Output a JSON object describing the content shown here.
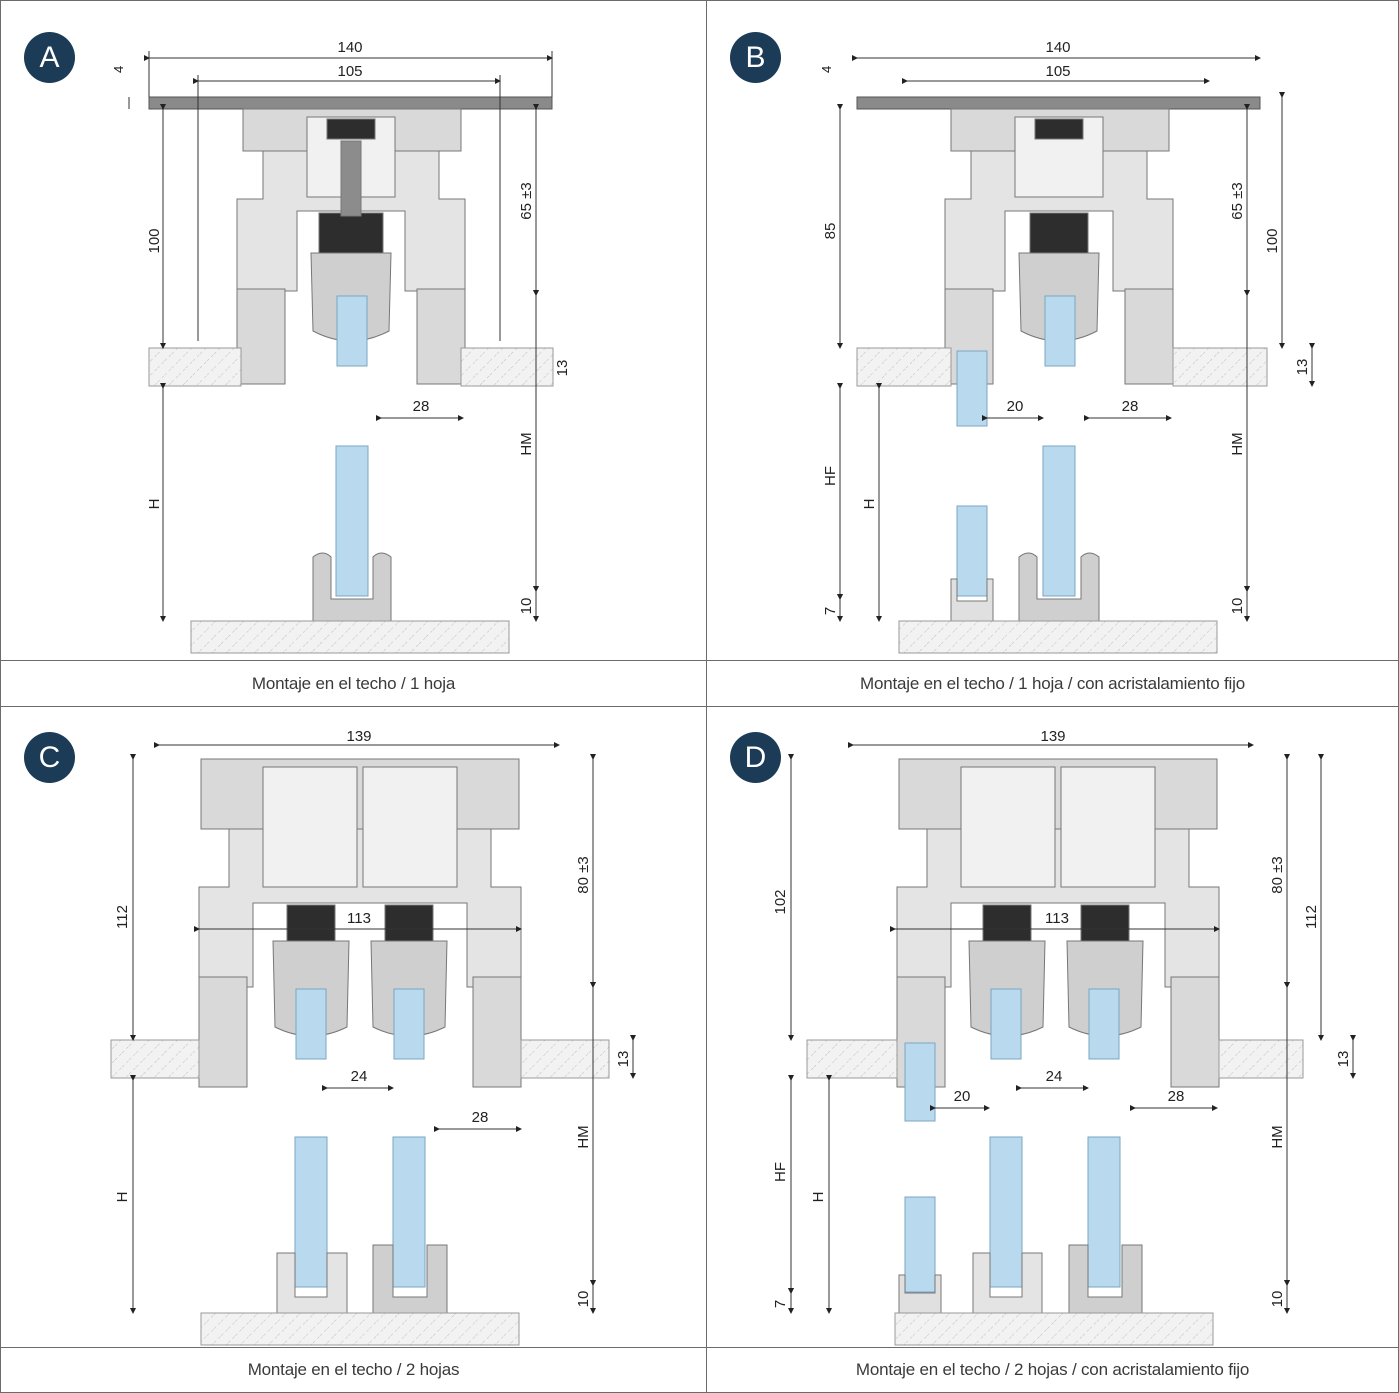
{
  "panels": [
    {
      "id": "A",
      "caption": "Montaje en el techo / 1 hoja",
      "dims": {
        "top_outer": "140",
        "top_inner": "105",
        "plate": "4",
        "left_height": "100",
        "right_upper": "65 ±3",
        "ceiling": "13",
        "gap_right": "28",
        "h": "H",
        "hm": "HM",
        "bottom": "10"
      }
    },
    {
      "id": "B",
      "caption": "Montaje en el techo / 1 hoja / con acristalamiento fijo",
      "dims": {
        "top_outer": "140",
        "top_inner": "105",
        "plate": "4",
        "left_height": "85",
        "right_upper": "65 ±3",
        "right_outer": "100",
        "ceiling": "13",
        "gap_left": "20",
        "gap_right": "28",
        "hf": "HF",
        "h": "H",
        "hm": "HM",
        "bottom_left": "7",
        "bottom": "10"
      }
    },
    {
      "id": "C",
      "caption": "Montaje en el techo / 2 hojas",
      "dims": {
        "top_outer": "139",
        "inner": "113",
        "left_height": "112",
        "right_upper": "80 ±3",
        "ceiling": "13",
        "gap_mid": "24",
        "gap_right": "28",
        "h": "H",
        "hm": "HM",
        "bottom": "10"
      }
    },
    {
      "id": "D",
      "caption": "Montaje en el techo / 2 hojas / con acristalamiento fijo",
      "dims": {
        "top_outer": "139",
        "inner": "113",
        "left_height": "102",
        "right_upper": "80 ±3",
        "right_outer": "112",
        "ceiling": "13",
        "gap_left": "20",
        "gap_mid": "24",
        "gap_right": "28",
        "hf": "HF",
        "h": "H",
        "hm": "HM",
        "bottom_left": "7",
        "bottom": "10"
      }
    }
  ],
  "colors": {
    "badge": "#1c3b57",
    "glass": "#b9d9ee",
    "metal": "#d9d9d9",
    "black": "#2d2d2d",
    "hatch": "#bdbdbd"
  }
}
